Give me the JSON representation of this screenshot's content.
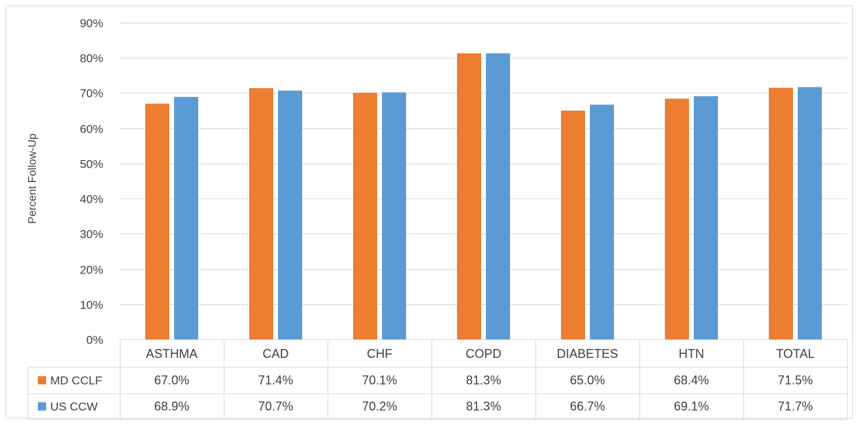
{
  "chart_data": {
    "type": "bar",
    "ylabel": "Percent Follow-Up",
    "ylim": [
      0,
      90
    ],
    "yticks": [
      "0%",
      "10%",
      "20%",
      "30%",
      "40%",
      "50%",
      "60%",
      "70%",
      "80%",
      "90%"
    ],
    "grid": true,
    "legend": "data-table",
    "categories": [
      "ASTHMA",
      "CAD",
      "CHF",
      "COPD",
      "DIABETES",
      "HTN",
      "TOTAL"
    ],
    "series": [
      {
        "name": "MD CCLF",
        "color": "#ED7D31",
        "values": [
          67.0,
          71.4,
          70.1,
          81.3,
          65.0,
          68.4,
          71.5
        ],
        "labels": [
          "67.0%",
          "71.4%",
          "70.1%",
          "81.3%",
          "65.0%",
          "68.4%",
          "71.5%"
        ]
      },
      {
        "name": "US CCW",
        "color": "#5B9BD5",
        "values": [
          68.9,
          70.7,
          70.2,
          81.3,
          66.7,
          69.1,
          71.7
        ],
        "labels": [
          "68.9%",
          "70.7%",
          "70.2%",
          "81.3%",
          "66.7%",
          "69.1%",
          "71.7%"
        ]
      }
    ]
  }
}
